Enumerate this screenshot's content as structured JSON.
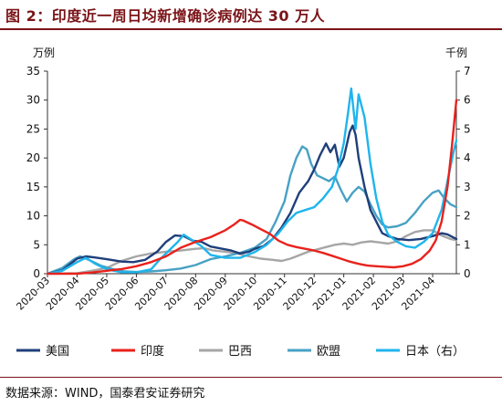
{
  "header": {
    "title": "图 2：印度近一周日均新增确诊病例达 30 万人"
  },
  "footer": {
    "source": "数据来源：WIND，国泰君安证券研究"
  },
  "chart_data": {
    "type": "line",
    "left_unit": "万例",
    "right_unit": "千例",
    "y_left": {
      "ylim": [
        0,
        35
      ],
      "ticks": [
        "0",
        "5",
        "10",
        "15",
        "20",
        "25",
        "30",
        "35"
      ]
    },
    "y_right": {
      "ylim": [
        0,
        7
      ],
      "ticks": [
        "0",
        "1",
        "2",
        "3",
        "4",
        "5",
        "6",
        "7"
      ]
    },
    "x_ticks": [
      "2020-03",
      "2020-04",
      "2020-05",
      "2020-06",
      "2020-07",
      "2020-08",
      "2020-09",
      "2020-10",
      "2020-11",
      "2020-12",
      "2021-01",
      "2021-02",
      "2021-03",
      "2021-04"
    ],
    "x_range": [
      0,
      13.8
    ],
    "grid": false,
    "legend_position": "bottom",
    "series": [
      {
        "name": "美国",
        "axis": "left",
        "color": "#1f3f7a",
        "points": [
          [
            0,
            0
          ],
          [
            0.5,
            0.6
          ],
          [
            0.8,
            1.8
          ],
          [
            1.0,
            2.6
          ],
          [
            1.3,
            3.0
          ],
          [
            1.6,
            2.8
          ],
          [
            2.0,
            2.5
          ],
          [
            2.5,
            2.1
          ],
          [
            2.9,
            2.0
          ],
          [
            3.3,
            2.4
          ],
          [
            3.7,
            3.8
          ],
          [
            4.0,
            5.5
          ],
          [
            4.3,
            6.6
          ],
          [
            4.6,
            6.5
          ],
          [
            4.9,
            5.7
          ],
          [
            5.2,
            5.5
          ],
          [
            5.5,
            4.7
          ],
          [
            5.8,
            4.4
          ],
          [
            6.2,
            4.0
          ],
          [
            6.5,
            3.5
          ],
          [
            6.8,
            3.8
          ],
          [
            7.0,
            4.3
          ],
          [
            7.3,
            4.8
          ],
          [
            7.6,
            6.0
          ],
          [
            7.9,
            8.0
          ],
          [
            8.2,
            10.5
          ],
          [
            8.5,
            14.0
          ],
          [
            8.8,
            16.0
          ],
          [
            9.0,
            18.0
          ],
          [
            9.2,
            20.5
          ],
          [
            9.4,
            22.5
          ],
          [
            9.55,
            21.0
          ],
          [
            9.7,
            22.3
          ],
          [
            9.85,
            18.5
          ],
          [
            10.0,
            20.0
          ],
          [
            10.2,
            24.5
          ],
          [
            10.3,
            25.6
          ],
          [
            10.4,
            24.0
          ],
          [
            10.5,
            20.0
          ],
          [
            10.7,
            15.0
          ],
          [
            10.9,
            11.0
          ],
          [
            11.1,
            9.0
          ],
          [
            11.3,
            7.0
          ],
          [
            11.5,
            6.5
          ],
          [
            11.8,
            6.0
          ],
          [
            12.2,
            5.8
          ],
          [
            12.6,
            6.0
          ],
          [
            13.0,
            6.5
          ],
          [
            13.3,
            7.0
          ],
          [
            13.5,
            6.8
          ],
          [
            13.8,
            6.0
          ]
        ]
      },
      {
        "name": "印度",
        "axis": "left",
        "color": "#e8221c",
        "points": [
          [
            0,
            0
          ],
          [
            1.0,
            0
          ],
          [
            1.5,
            0.2
          ],
          [
            2.0,
            0.5
          ],
          [
            2.5,
            0.8
          ],
          [
            3.0,
            1.3
          ],
          [
            3.5,
            2.0
          ],
          [
            4.0,
            3.0
          ],
          [
            4.5,
            4.5
          ],
          [
            5.0,
            5.5
          ],
          [
            5.5,
            6.3
          ],
          [
            6.0,
            7.5
          ],
          [
            6.3,
            8.5
          ],
          [
            6.5,
            9.3
          ],
          [
            6.6,
            9.2
          ],
          [
            6.9,
            8.5
          ],
          [
            7.2,
            7.7
          ],
          [
            7.5,
            6.9
          ],
          [
            7.8,
            5.7
          ],
          [
            8.1,
            5.0
          ],
          [
            8.4,
            4.6
          ],
          [
            8.7,
            4.3
          ],
          [
            9.0,
            4.0
          ],
          [
            9.3,
            3.6
          ],
          [
            9.6,
            3.1
          ],
          [
            9.9,
            2.6
          ],
          [
            10.2,
            2.1
          ],
          [
            10.5,
            1.7
          ],
          [
            10.8,
            1.4
          ],
          [
            11.1,
            1.3
          ],
          [
            11.4,
            1.2
          ],
          [
            11.7,
            1.1
          ],
          [
            12.0,
            1.3
          ],
          [
            12.3,
            1.7
          ],
          [
            12.6,
            2.5
          ],
          [
            12.9,
            4.0
          ],
          [
            13.1,
            5.7
          ],
          [
            13.3,
            9.0
          ],
          [
            13.5,
            15.0
          ],
          [
            13.65,
            22.0
          ],
          [
            13.8,
            30.0
          ]
        ]
      },
      {
        "name": "巴西",
        "axis": "left",
        "color": "#a6a6a6",
        "points": [
          [
            0,
            0
          ],
          [
            1.0,
            0.1
          ],
          [
            1.5,
            0.5
          ],
          [
            2.0,
            1.0
          ],
          [
            2.5,
            2.2
          ],
          [
            3.0,
            3.0
          ],
          [
            3.5,
            3.5
          ],
          [
            4.0,
            3.8
          ],
          [
            4.5,
            4.0
          ],
          [
            5.0,
            4.3
          ],
          [
            5.3,
            4.4
          ],
          [
            5.6,
            4.0
          ],
          [
            6.0,
            3.8
          ],
          [
            6.4,
            3.5
          ],
          [
            6.8,
            3.0
          ],
          [
            7.2,
            2.6
          ],
          [
            7.6,
            2.4
          ],
          [
            7.9,
            2.2
          ],
          [
            8.2,
            2.6
          ],
          [
            8.5,
            3.2
          ],
          [
            8.8,
            3.8
          ],
          [
            9.1,
            4.2
          ],
          [
            9.4,
            4.6
          ],
          [
            9.7,
            5.0
          ],
          [
            10.0,
            5.2
          ],
          [
            10.3,
            5.0
          ],
          [
            10.6,
            5.4
          ],
          [
            10.9,
            5.6
          ],
          [
            11.2,
            5.4
          ],
          [
            11.5,
            5.2
          ],
          [
            11.8,
            5.6
          ],
          [
            12.1,
            6.5
          ],
          [
            12.4,
            7.2
          ],
          [
            12.7,
            7.5
          ],
          [
            13.0,
            7.5
          ],
          [
            13.3,
            6.6
          ],
          [
            13.6,
            6.0
          ],
          [
            13.8,
            5.8
          ]
        ]
      },
      {
        "name": "欧盟",
        "axis": "left",
        "color": "#48a1c4",
        "points": [
          [
            0,
            0
          ],
          [
            0.5,
            1.0
          ],
          [
            0.9,
            2.5
          ],
          [
            1.1,
            3.0
          ],
          [
            1.4,
            2.4
          ],
          [
            1.8,
            1.4
          ],
          [
            2.2,
            0.8
          ],
          [
            2.6,
            0.4
          ],
          [
            3.0,
            0.3
          ],
          [
            3.5,
            0.4
          ],
          [
            4.0,
            0.6
          ],
          [
            4.5,
            0.9
          ],
          [
            5.0,
            1.5
          ],
          [
            5.5,
            2.5
          ],
          [
            6.0,
            3.0
          ],
          [
            6.5,
            3.6
          ],
          [
            7.0,
            4.5
          ],
          [
            7.4,
            6.0
          ],
          [
            7.7,
            9.0
          ],
          [
            8.0,
            12.5
          ],
          [
            8.2,
            17.0
          ],
          [
            8.4,
            20.0
          ],
          [
            8.6,
            22.0
          ],
          [
            8.75,
            21.5
          ],
          [
            8.9,
            19.0
          ],
          [
            9.1,
            17.0
          ],
          [
            9.3,
            16.5
          ],
          [
            9.5,
            16.0
          ],
          [
            9.7,
            16.8
          ],
          [
            9.9,
            14.5
          ],
          [
            10.1,
            12.5
          ],
          [
            10.3,
            14.0
          ],
          [
            10.5,
            15.0
          ],
          [
            10.7,
            14.2
          ],
          [
            10.9,
            12.0
          ],
          [
            11.1,
            10.0
          ],
          [
            11.3,
            8.5
          ],
          [
            11.5,
            8.0
          ],
          [
            11.8,
            8.2
          ],
          [
            12.1,
            8.8
          ],
          [
            12.4,
            10.5
          ],
          [
            12.7,
            12.5
          ],
          [
            13.0,
            14.0
          ],
          [
            13.2,
            14.4
          ],
          [
            13.4,
            13.0
          ],
          [
            13.6,
            12.0
          ],
          [
            13.8,
            11.5
          ]
        ]
      },
      {
        "name": "日本（右）",
        "axis": "right",
        "color": "#1fb5ec",
        "points": [
          [
            0,
            0
          ],
          [
            0.5,
            0.1
          ],
          [
            1.0,
            0.4
          ],
          [
            1.3,
            0.55
          ],
          [
            1.6,
            0.35
          ],
          [
            2.0,
            0.15
          ],
          [
            2.5,
            0.05
          ],
          [
            3.0,
            0.05
          ],
          [
            3.5,
            0.15
          ],
          [
            3.8,
            0.5
          ],
          [
            4.1,
            0.8
          ],
          [
            4.4,
            1.1
          ],
          [
            4.6,
            1.35
          ],
          [
            4.9,
            1.15
          ],
          [
            5.2,
            0.95
          ],
          [
            5.5,
            0.65
          ],
          [
            6.0,
            0.55
          ],
          [
            6.5,
            0.55
          ],
          [
            7.0,
            0.75
          ],
          [
            7.4,
            1.0
          ],
          [
            7.8,
            1.4
          ],
          [
            8.1,
            1.8
          ],
          [
            8.4,
            2.1
          ],
          [
            8.7,
            2.2
          ],
          [
            9.0,
            2.3
          ],
          [
            9.3,
            2.6
          ],
          [
            9.6,
            3.0
          ],
          [
            9.8,
            3.6
          ],
          [
            10.0,
            4.5
          ],
          [
            10.15,
            5.6
          ],
          [
            10.25,
            6.4
          ],
          [
            10.4,
            5.0
          ],
          [
            10.5,
            6.2
          ],
          [
            10.7,
            5.4
          ],
          [
            10.9,
            3.8
          ],
          [
            11.1,
            2.6
          ],
          [
            11.3,
            1.8
          ],
          [
            11.5,
            1.35
          ],
          [
            11.8,
            1.1
          ],
          [
            12.1,
            0.95
          ],
          [
            12.4,
            0.9
          ],
          [
            12.7,
            1.1
          ],
          [
            13.0,
            1.4
          ],
          [
            13.3,
            2.2
          ],
          [
            13.5,
            3.2
          ],
          [
            13.7,
            4.2
          ],
          [
            13.8,
            4.6
          ]
        ]
      }
    ]
  }
}
